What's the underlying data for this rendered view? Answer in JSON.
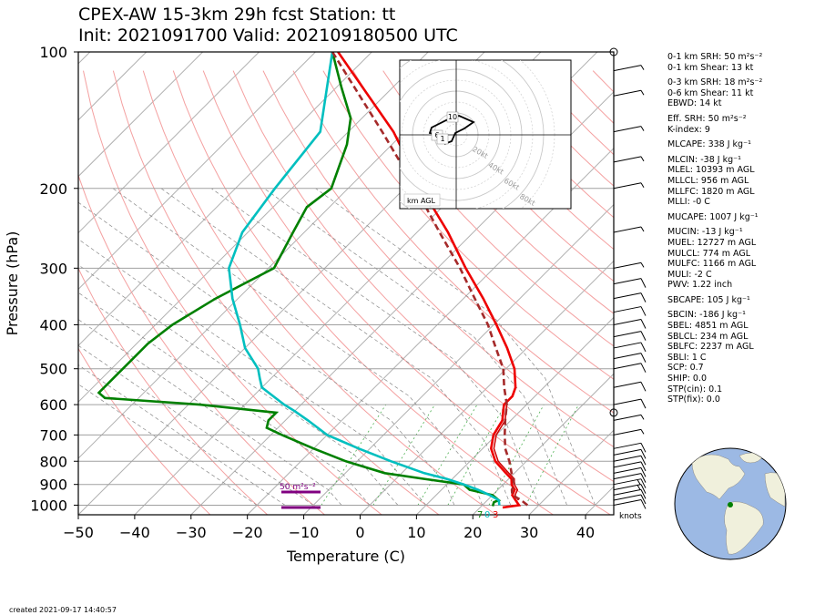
{
  "header": {
    "title_line1": "CPEX-AW 15-3km  29h fcst  Station: tt",
    "title_line2": "Init: 2021091700  Valid: 202109180500 UTC"
  },
  "chart_data": {
    "type": "line",
    "title": "CPEX-AW 15-3km  29h fcst  Station: tt",
    "xlabel": "Temperature (C)",
    "ylabel": "Pressure (hPa)",
    "xlim": [
      -50,
      45
    ],
    "ylim": [
      1050,
      100
    ],
    "y_scale": "log",
    "x_ticks": [
      "−50",
      "−40",
      "−30",
      "−20",
      "−10",
      "0",
      "10",
      "20",
      "30",
      "40"
    ],
    "y_ticks": [
      "100",
      "200",
      "300",
      "400",
      "500",
      "600",
      "700",
      "800",
      "900",
      "1000"
    ],
    "series": [
      {
        "color": "#ee0000",
        "pressure": [
          1012,
          1000,
          975,
          950,
          925,
          900,
          875,
          850,
          800,
          750,
          700,
          650,
          620,
          600,
          575,
          550,
          500,
          450,
          400,
          350,
          300,
          250,
          200,
          150,
          100
        ],
        "temperature": [
          24,
          26.5,
          25,
          23.5,
          23,
          21.5,
          20.5,
          18.5,
          14.5,
          11.5,
          9.5,
          8.5,
          7,
          6,
          6,
          5,
          1.5,
          -3.5,
          -9.5,
          -16.5,
          -25,
          -34.5,
          -47,
          -62,
          -86
        ]
      },
      {
        "color": "#cc0000",
        "pressure": [
          975,
          950,
          925,
          900,
          875,
          850,
          800,
          750,
          700,
          650,
          620,
          600
        ],
        "temperature": [
          25.5,
          24,
          23.5,
          22,
          21,
          19,
          15,
          12,
          10,
          9,
          7.5,
          6.5
        ]
      },
      {
        "color": "#008000",
        "pressure": [
          1005,
          985,
          975,
          950,
          925,
          900,
          875,
          850,
          800,
          750,
          700,
          675,
          650,
          625,
          600,
          580,
          565,
          540,
          520,
          480,
          440,
          400,
          350,
          300,
          250,
          220,
          200,
          160,
          140,
          120,
          100
        ],
        "temperature": [
          22,
          21.5,
          22,
          20,
          15,
          13,
          5,
          -3,
          -12,
          -20,
          -28,
          -32,
          -33,
          -33,
          -48,
          -66,
          -68,
          -68,
          -68,
          -68,
          -68,
          -67,
          -64,
          -59,
          -62,
          -64,
          -63,
          -68,
          -72,
          -79,
          -87
        ]
      },
      {
        "color": "#00bfbf",
        "pressure": [
          1000,
          975,
          950,
          925,
          900,
          875,
          850,
          800,
          750,
          700,
          650,
          620,
          600,
          550,
          525,
          500,
          450,
          400,
          350,
          300,
          250,
          200,
          150,
          100
        ],
        "temperature": [
          23,
          22,
          19.5,
          16.5,
          13,
          9,
          4,
          -4,
          -12,
          -20,
          -26,
          -30,
          -33,
          -40,
          -42,
          -44,
          -50,
          -55,
          -61,
          -67,
          -71,
          -73,
          -75,
          -87
        ]
      },
      {
        "color": "#a52a2a",
        "pressure": [
          1000,
          975,
          950,
          925,
          900,
          850,
          800,
          750,
          700,
          650,
          600,
          550,
          500,
          450,
          400,
          350,
          300,
          250,
          200,
          150,
          100
        ],
        "temperature": [
          28,
          26,
          23.5,
          22.5,
          22,
          19.5,
          17,
          14,
          11.5,
          9,
          6.5,
          3,
          -0.5,
          -5.5,
          -11,
          -18,
          -26,
          -36,
          -48,
          -64,
          -87
        ]
      }
    ],
    "srh_labels": [
      "50 m$^2$s$^{-2}$"
    ],
    "surface_labels": [
      "7",
      "0",
      "3"
    ],
    "wind_units": "knots",
    "hodograph": {
      "ring_labels": [
        "20kt",
        "40kt",
        "60kt",
        "80kt"
      ],
      "height_labels": [
        "10",
        "6",
        "1"
      ],
      "units_label": "km AGL"
    }
  },
  "indices": [
    "0-1 km SRH: 50 m$^2$s$^{-2}$",
    "0-1 km Shear: 13 kt",
    "0-3 km SRH: 18 m$^2$s$^{-2}$",
    "0-6 km Shear: 11 kt",
    "EBWD: 14 kt",
    "Eff. SRH: 50 m$^2$s$^{-2}$",
    "K-index: 9",
    "MLCAPE: 338 J kg$^{-1}$",
    "MLCIN: -38 J kg$^{-1}$",
    "MLEL: 10393 m AGL",
    "MLLCL: 956 m AGL",
    "MLLFC: 1820 m AGL",
    "MLLI: -0 C",
    "MUCAPE: 1007 J kg$^{-1}$",
    "MUCIN: -13 J kg$^{-1}$",
    "MUEL: 12727 m AGL",
    "MULCL: 774 m AGL",
    "MULFC: 1166 m AGL",
    "MULI: -2 C",
    "PWV: 1.22 inch",
    "SBCAPE: 105 J kg$^{-1}$",
    "SBCIN: -186 J kg$^{-1}$",
    "SBEL: 4851 m AGL",
    "SBLCL: 234 m AGL",
    "SBLFC: 2237 m AGL",
    "SBLI: 1 C",
    "SCP: 0.7",
    "SHIP: 0.0",
    "STP(cin): 0.1",
    "STP(fix): 0.0"
  ],
  "footer": {
    "created": "created 2021-09-17 14:40:57"
  },
  "colors": {
    "temperature": "#ee0000",
    "dewpoint": "#008000",
    "wetbulb": "#00bfbf",
    "parcel": "#a52a2a",
    "srh_bar": "#800080",
    "globe_ocean": "#9cb9e4",
    "globe_land": "#f0f0dc"
  }
}
